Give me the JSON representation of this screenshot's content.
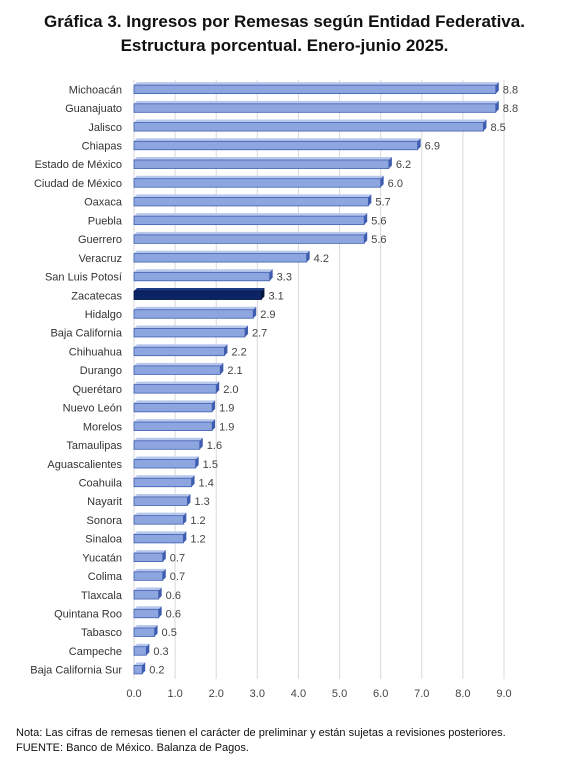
{
  "chart_data": {
    "type": "bar",
    "orientation": "horizontal",
    "title": "Gráfica 3. Ingresos por Remesas según Entidad Federativa.",
    "subtitle": "Estructura porcentual. Enero-junio 2025.",
    "categories": [
      "Michoacán",
      "Guanajuato",
      "Jalisco",
      "Chiapas",
      "Estado de México",
      "Ciudad de México",
      "Oaxaca",
      "Puebla",
      "Guerrero",
      "Veracruz",
      "San Luis Potosí",
      "Zacatecas",
      "Hidalgo",
      "Baja California",
      "Chihuahua",
      "Durango",
      "Querétaro",
      "Nuevo León",
      "Morelos",
      "Tamaulipas",
      "Aguascalientes",
      "Coahuila",
      "Nayarit",
      "Sonora",
      "Sinaloa",
      "Yucatán",
      "Colima",
      "Tlaxcala",
      "Quintana Roo",
      "Tabasco",
      "Campeche",
      "Baja California Sur"
    ],
    "values": [
      8.8,
      8.8,
      8.5,
      6.9,
      6.2,
      6.0,
      5.7,
      5.6,
      5.6,
      4.2,
      3.3,
      3.1,
      2.9,
      2.7,
      2.2,
      2.1,
      2.0,
      1.9,
      1.9,
      1.6,
      1.5,
      1.4,
      1.3,
      1.2,
      1.2,
      0.7,
      0.7,
      0.6,
      0.6,
      0.5,
      0.3,
      0.2
    ],
    "data_labels": [
      "8.8",
      "8.8",
      "8.5",
      "6.9",
      "6.2",
      "6.0",
      "5.7",
      "5.6",
      "5.6",
      "4.2",
      "3.3",
      "3.1",
      "2.9",
      "2.7",
      "2.2",
      "2.1",
      "2.0",
      "1.9",
      "1.9",
      "1.6",
      "1.5",
      "1.4",
      "1.3",
      "1.2",
      "1.2",
      "0.7",
      "0.7",
      "0.6",
      "0.6",
      "0.5",
      "0.3",
      "0.2"
    ],
    "highlight": "Zacatecas",
    "xlim": [
      0,
      9.0
    ],
    "xticks": [
      "0.0",
      "1.0",
      "2.0",
      "3.0",
      "4.0",
      "5.0",
      "6.0",
      "7.0",
      "8.0",
      "9.0"
    ],
    "grid": true,
    "legend": "none",
    "colors": {
      "bar": "#8ea6e0",
      "bar_side": "#3e5db0",
      "highlight": "#0b2463",
      "highlight_side": "#051640",
      "grid": "#d9d9d9"
    }
  },
  "notes": {
    "nota": "Nota: Las cifras de remesas tienen el carácter de preliminar y están sujetas a revisiones posteriores.",
    "fuente": "FUENTE: Banco de México. Balanza de Pagos."
  }
}
